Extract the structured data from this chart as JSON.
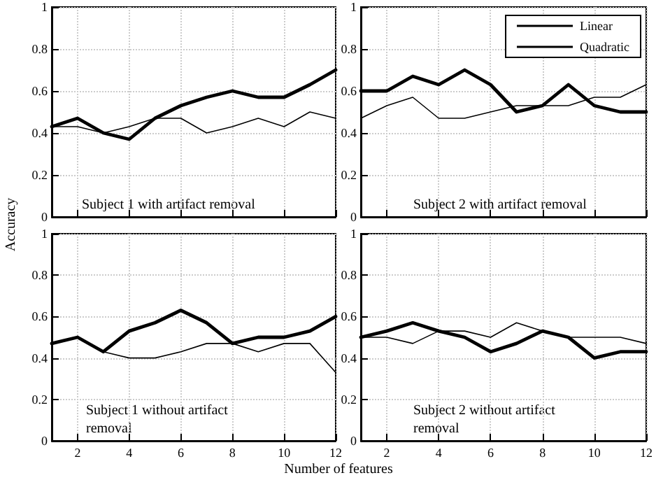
{
  "chart_data": [
    {
      "type": "line",
      "ylabel": "Accuracy",
      "annotations": [
        "Subject 1 with artifact removal"
      ],
      "x": [
        1,
        2,
        3,
        4,
        5,
        6,
        7,
        8,
        9,
        10,
        11,
        12
      ],
      "xlim": [
        1,
        12
      ],
      "xticks": [
        2,
        4,
        6,
        8,
        10,
        12
      ],
      "ylim": [
        0,
        1
      ],
      "yticks": [
        0,
        0.2,
        0.4,
        0.6,
        0.8,
        1
      ],
      "grid": true,
      "legend": false,
      "marker": "none",
      "line_style": "solid",
      "tick_labels": "y",
      "series": [
        {
          "color": "#000000",
          "values": [
            0.43,
            0.43,
            0.4,
            0.43,
            0.47,
            0.47,
            0.4,
            0.43,
            0.47,
            0.43,
            0.5,
            0.47
          ]
        },
        {
          "color": "#000000",
          "values": [
            0.43,
            0.47,
            0.4,
            0.37,
            0.47,
            0.53,
            0.57,
            0.6,
            0.57,
            0.57,
            0.63,
            0.7
          ]
        }
      ]
    },
    {
      "type": "line",
      "annotations": [
        "Subject 2 with artifact removal"
      ],
      "x": [
        1,
        2,
        3,
        4,
        5,
        6,
        7,
        8,
        9,
        10,
        11,
        12
      ],
      "xlim": [
        1,
        12
      ],
      "xticks": [
        2,
        4,
        6,
        8,
        10,
        12
      ],
      "ylim": [
        0,
        1
      ],
      "yticks": [
        0,
        0.2,
        0.4,
        0.6,
        0.8,
        1
      ],
      "grid": true,
      "legend": "top right",
      "marker": "none",
      "line_style": "solid",
      "tick_labels": "y",
      "series": [
        {
          "name": "Linear",
          "color": "#000000",
          "values": [
            0.47,
            0.53,
            0.57,
            0.47,
            0.47,
            0.5,
            0.53,
            0.53,
            0.53,
            0.57,
            0.57,
            0.63
          ]
        },
        {
          "name": "Quadratic",
          "color": "#000000",
          "values": [
            0.6,
            0.6,
            0.67,
            0.63,
            0.7,
            0.63,
            0.5,
            0.53,
            0.63,
            0.53,
            0.5,
            0.5
          ]
        }
      ]
    },
    {
      "type": "line",
      "annotations": [
        "Subject 1 without artifact removal"
      ],
      "x": [
        1,
        2,
        3,
        4,
        5,
        6,
        7,
        8,
        9,
        10,
        11,
        12
      ],
      "xlim": [
        1,
        12
      ],
      "xticks": [
        2,
        4,
        6,
        8,
        10,
        12
      ],
      "ylim": [
        0,
        1
      ],
      "yticks": [
        0,
        0.2,
        0.4,
        0.6,
        0.8,
        1
      ],
      "grid": true,
      "legend": false,
      "marker": "none",
      "line_style": "solid",
      "series": [
        {
          "color": "#000000",
          "values": [
            0.47,
            0.5,
            0.43,
            0.4,
            0.4,
            0.43,
            0.47,
            0.47,
            0.43,
            0.47,
            0.47,
            0.33
          ]
        },
        {
          "color": "#000000",
          "values": [
            0.47,
            0.5,
            0.43,
            0.53,
            0.57,
            0.63,
            0.57,
            0.47,
            0.5,
            0.5,
            0.53,
            0.6
          ]
        }
      ]
    },
    {
      "type": "line",
      "xlabel": "Number of features",
      "annotations": [
        "Subject 2 without artifact removal"
      ],
      "x": [
        1,
        2,
        3,
        4,
        5,
        6,
        7,
        8,
        9,
        10,
        11,
        12
      ],
      "xlim": [
        1,
        12
      ],
      "xticks": [
        2,
        4,
        6,
        8,
        10,
        12
      ],
      "ylim": [
        0,
        1
      ],
      "yticks": [
        0,
        0.2,
        0.4,
        0.6,
        0.8,
        1
      ],
      "grid": true,
      "legend": false,
      "marker": "none",
      "line_style": "solid",
      "series": [
        {
          "color": "#000000",
          "values": [
            0.5,
            0.5,
            0.47,
            0.53,
            0.53,
            0.5,
            0.57,
            0.53,
            0.5,
            0.5,
            0.5,
            0.47
          ]
        },
        {
          "color": "#000000",
          "values": [
            0.5,
            0.53,
            0.57,
            0.53,
            0.5,
            0.43,
            0.47,
            0.53,
            0.5,
            0.4,
            0.43,
            0.43
          ]
        }
      ]
    }
  ]
}
